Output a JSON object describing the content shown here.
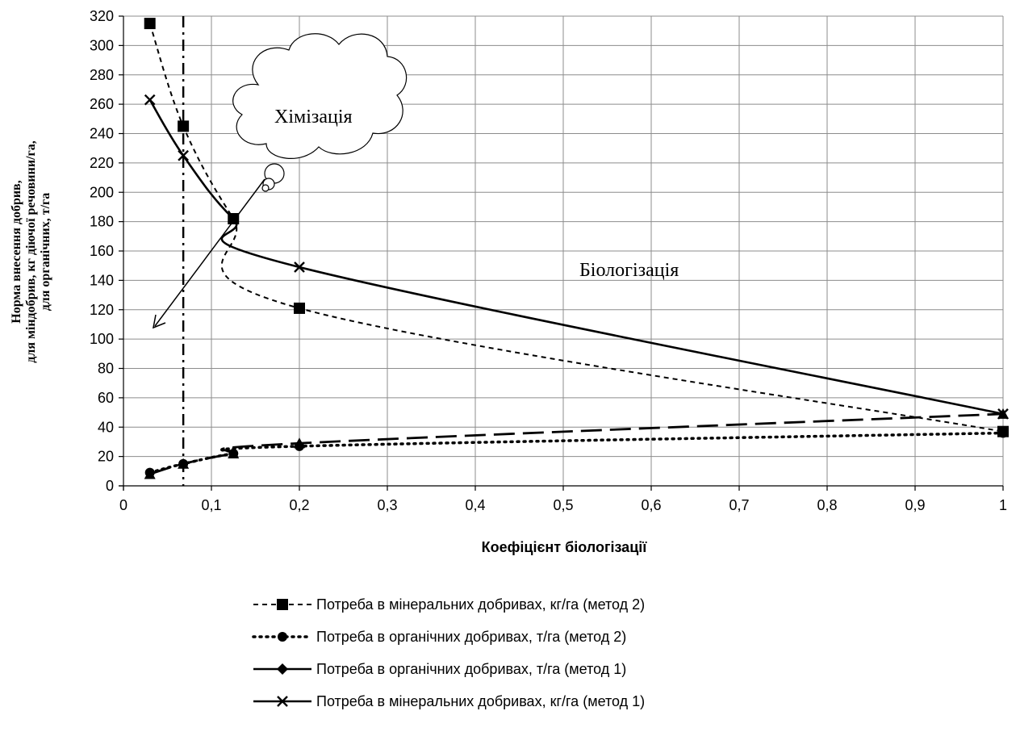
{
  "chart_data": {
    "type": "line",
    "xlabel": "Коефіцієнт біологізації",
    "ylabel_lines": [
      "Норма внесення добрив,",
      "для міндобрив, кг діючої речовини/га,",
      "для органічних, т/га"
    ],
    "xlim": [
      0,
      1
    ],
    "ylim": [
      0,
      320
    ],
    "x_ticks": [
      0,
      0.1,
      0.2,
      0.3,
      0.4,
      0.5,
      0.6,
      0.7,
      0.8,
      0.9,
      1
    ],
    "x_tick_labels": [
      "0",
      "0,1",
      "0,2",
      "0,3",
      "0,4",
      "0,5",
      "0,6",
      "0,7",
      "0,8",
      "0,9",
      "1"
    ],
    "y_ticks": [
      0,
      20,
      40,
      60,
      80,
      100,
      120,
      140,
      160,
      180,
      200,
      220,
      240,
      260,
      280,
      300,
      320
    ],
    "grid": true,
    "legend_position": "bottom",
    "vertical_reference_x": 0.068,
    "annotations": [
      "Хімізація",
      "Біологізація"
    ],
    "series": [
      {
        "name": "Потреба в мінеральних добривах, кг/га (метод 2)",
        "line": "dash",
        "marker": "square",
        "in_legend": true,
        "x": [
          0.03,
          0.068,
          0.125,
          0.2,
          1
        ],
        "y": [
          315,
          245,
          182,
          121,
          37
        ]
      },
      {
        "name": "Потреба в органічних добривах, т/га (метод 2)",
        "line": "dot",
        "marker": "circle",
        "in_legend": true,
        "x": [
          0.03,
          0.068,
          0.125,
          0.2,
          1
        ],
        "y": [
          9,
          15,
          22,
          27,
          36
        ]
      },
      {
        "line": "longdash",
        "marker": "triangle",
        "in_legend": false,
        "x": [
          0.03,
          0.068,
          0.125,
          0.2,
          1
        ],
        "y": [
          8,
          15,
          22,
          29,
          49
        ]
      },
      {
        "name": "Потреба в органічних добривах, т/га (метод 1)",
        "line": "solid",
        "marker": "diamond",
        "in_legend": true,
        "x": [],
        "y": []
      },
      {
        "name": "Потреба в мінеральних добривах, кг/га (метод 1)",
        "line": "solid",
        "marker": "x",
        "in_legend": true,
        "x": [
          0.03,
          0.068,
          0.125,
          0.2,
          1
        ],
        "y": [
          263,
          225,
          182,
          149,
          49
        ]
      }
    ]
  }
}
